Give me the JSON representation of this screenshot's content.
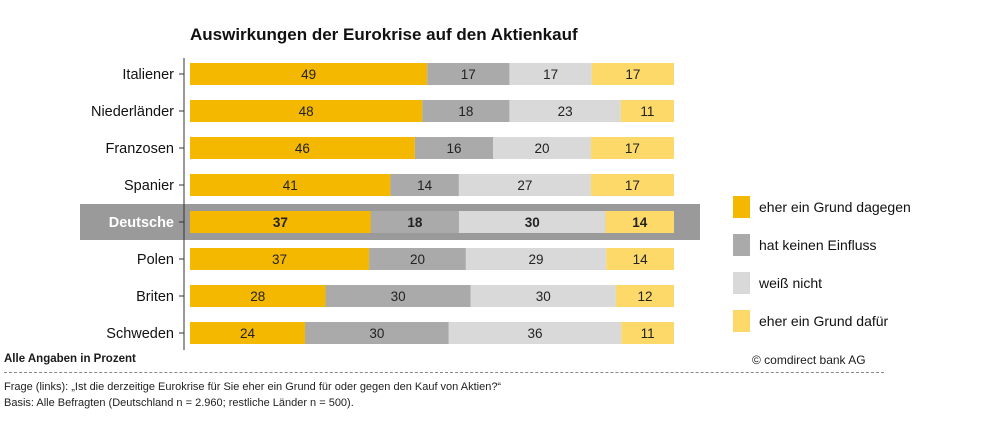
{
  "chart_data": {
    "type": "bar",
    "stacked": true,
    "orientation": "horizontal",
    "title": "Auswirkungen der Eurokrise auf den Aktienkauf",
    "categories": [
      "Italiener",
      "Niederländer",
      "Franzosen",
      "Spanier",
      "Deutsche",
      "Polen",
      "Briten",
      "Schweden"
    ],
    "highlight_category": "Deutsche",
    "series": [
      {
        "name": "eher ein Grund dagegen",
        "color": "#f5b800",
        "values": [
          49,
          48,
          46,
          41,
          37,
          37,
          28,
          24
        ]
      },
      {
        "name": "hat keinen Einfluss",
        "color": "#aaaaaa",
        "values": [
          17,
          18,
          16,
          14,
          18,
          20,
          30,
          30
        ]
      },
      {
        "name": "weiß nicht",
        "color": "#d9d9d9",
        "values": [
          17,
          23,
          20,
          27,
          30,
          29,
          30,
          36
        ]
      },
      {
        "name": "eher ein Grund dafür",
        "color": "#fdd96a",
        "values": [
          17,
          11,
          17,
          17,
          14,
          14,
          12,
          11
        ]
      }
    ],
    "legend_position": "right",
    "grid": false
  },
  "footer": {
    "unit_note": "Alle Angaben in Prozent",
    "copyright": "© comdirect bank AG",
    "question": "Frage (links): „Ist die derzeitige Eurokrise für Sie eher ein Grund für oder gegen den Kauf von Aktien?“",
    "basis": "Basis: Alle Befragten (Deutschland n = 2.960; restliche Länder n = 500)."
  }
}
